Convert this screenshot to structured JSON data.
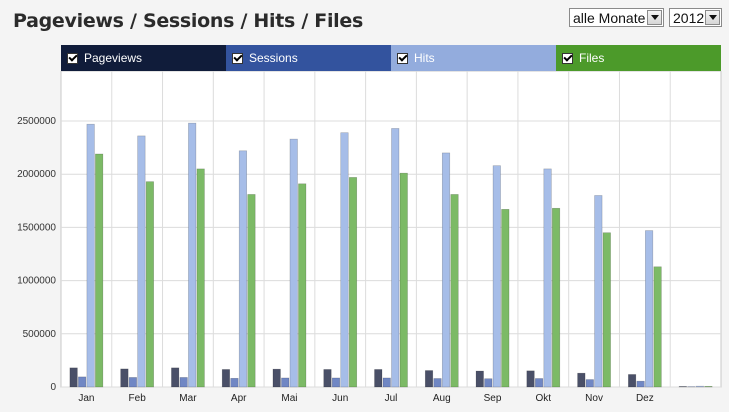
{
  "header": {
    "title": "Pageviews / Sessions / Hits / Files"
  },
  "filters": {
    "month_value": "alle Monate",
    "year_value": "2012"
  },
  "legend": [
    {
      "label": "Pageviews",
      "color": "#101c3a",
      "checked": true
    },
    {
      "label": "Sessions",
      "color": "#33539e",
      "checked": true
    },
    {
      "label": "Hits",
      "color": "#93acdd",
      "checked": true
    },
    {
      "label": "Files",
      "color": "#4c9a2a",
      "checked": true
    }
  ],
  "chart_data": {
    "type": "bar",
    "categories": [
      "Jan",
      "Feb",
      "Mar",
      "Apr",
      "Mai",
      "Jun",
      "Jul",
      "Aug",
      "Sep",
      "Okt",
      "Nov",
      "Dez",
      ""
    ],
    "series": [
      {
        "name": "Pageviews",
        "color": "#4a5068",
        "values": [
          180000,
          170000,
          180000,
          165000,
          168000,
          165000,
          165000,
          155000,
          150000,
          152000,
          130000,
          118000,
          5000
        ]
      },
      {
        "name": "Sessions",
        "color": "#7087c4",
        "values": [
          95000,
          90000,
          90000,
          82000,
          85000,
          85000,
          85000,
          80000,
          78000,
          80000,
          70000,
          55000,
          3000
        ]
      },
      {
        "name": "Hits",
        "color": "#a6bde8",
        "values": [
          2470000,
          2360000,
          2480000,
          2220000,
          2330000,
          2390000,
          2430000,
          2200000,
          2080000,
          2050000,
          1800000,
          1470000,
          8000
        ]
      },
      {
        "name": "Files",
        "color": "#7cba66",
        "values": [
          2190000,
          1930000,
          2050000,
          1810000,
          1910000,
          1970000,
          2010000,
          1810000,
          1670000,
          1680000,
          1450000,
          1130000,
          6000
        ]
      }
    ],
    "yticks": [
      "0",
      "500000",
      "1000000",
      "1500000",
      "2000000",
      "2500000"
    ],
    "ylim": [
      0,
      2500000
    ],
    "xlabel": "",
    "ylabel": "",
    "grid": true
  }
}
